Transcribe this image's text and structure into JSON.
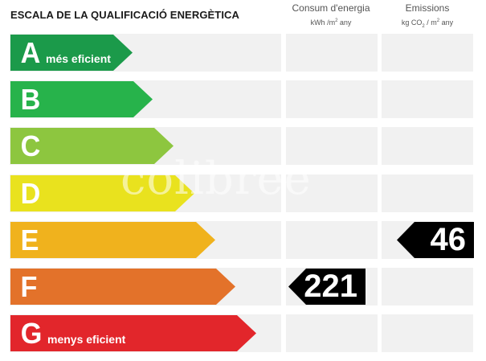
{
  "title": "ESCALA DE LA QUALIFICACIÓ ENERGÈTICA",
  "columns": {
    "consum": {
      "label": "Consum d'energia",
      "unit_main": "kWh /m",
      "unit_sup": "2",
      "unit_tail": " any"
    },
    "emissions": {
      "label": "Emissions",
      "unit_kg": "kg CO",
      "unit_sub": "2",
      "unit_mid": " / m",
      "unit_sup": "2",
      "unit_tail": " any"
    }
  },
  "bands": [
    {
      "letter": "A",
      "sublabel": "més eficient",
      "color": "#1b9a4a",
      "consum": "",
      "emissions": ""
    },
    {
      "letter": "B",
      "sublabel": "",
      "color": "#27b34b",
      "consum": "",
      "emissions": ""
    },
    {
      "letter": "C",
      "sublabel": "",
      "color": "#8dc63f",
      "consum": "",
      "emissions": ""
    },
    {
      "letter": "D",
      "sublabel": "",
      "color": "#e9e21e",
      "consum": "",
      "emissions": ""
    },
    {
      "letter": "E",
      "sublabel": "",
      "color": "#f0b21d",
      "consum": "",
      "emissions": "46"
    },
    {
      "letter": "F",
      "sublabel": "",
      "color": "#e3722a",
      "consum": "221",
      "emissions": ""
    },
    {
      "letter": "G",
      "sublabel": "menys eficient",
      "color": "#e2262b",
      "consum": "",
      "emissions": ""
    }
  ],
  "watermark": "colibree"
}
